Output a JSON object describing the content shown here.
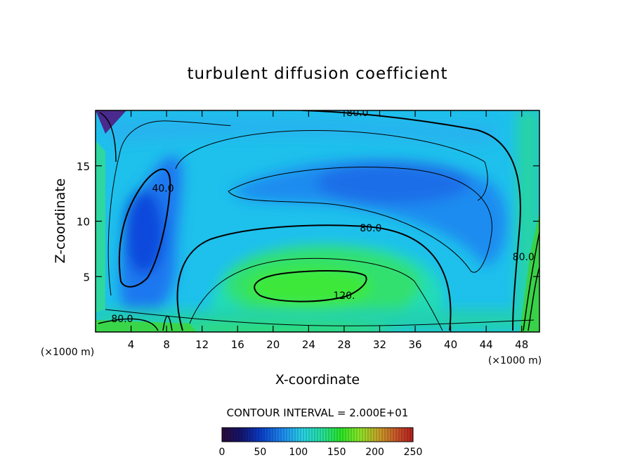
{
  "chart_data": {
    "type": "heatmap",
    "title": "turbulent diffusion coefficient",
    "xlabel": "X-coordinate",
    "ylabel": "Z-coordinate",
    "x_unit_left": "(×1000 m)",
    "x_unit_right": "(×1000 m)",
    "xlim": [
      0,
      50
    ],
    "ylim": [
      0,
      20
    ],
    "x_ticks": [
      4,
      8,
      12,
      16,
      20,
      24,
      28,
      32,
      36,
      40,
      44,
      48
    ],
    "y_ticks": [
      5,
      10,
      15
    ],
    "contour_interval_text": "CONTOUR INTERVAL = 2.000E+01",
    "contour_labels": [
      {
        "text": "80.0",
        "x": 29.5,
        "y": 19.8
      },
      {
        "text": "40.0",
        "x": 7.6,
        "y": 13.0
      },
      {
        "text": "80.0",
        "x": 31.0,
        "y": 9.4
      },
      {
        "text": "120.",
        "x": 28.0,
        "y": 3.3
      },
      {
        "text": "80.0",
        "x": 48.2,
        "y": 6.8
      },
      {
        "text": "80.0",
        "x": 3.0,
        "y": 1.2
      }
    ],
    "colorbar": {
      "min": 0,
      "max": 250,
      "tick_labels": [
        "0",
        "50",
        "100",
        "150",
        "200",
        "250"
      ],
      "tick_values": [
        0,
        50,
        100,
        150,
        200,
        250
      ]
    }
  }
}
